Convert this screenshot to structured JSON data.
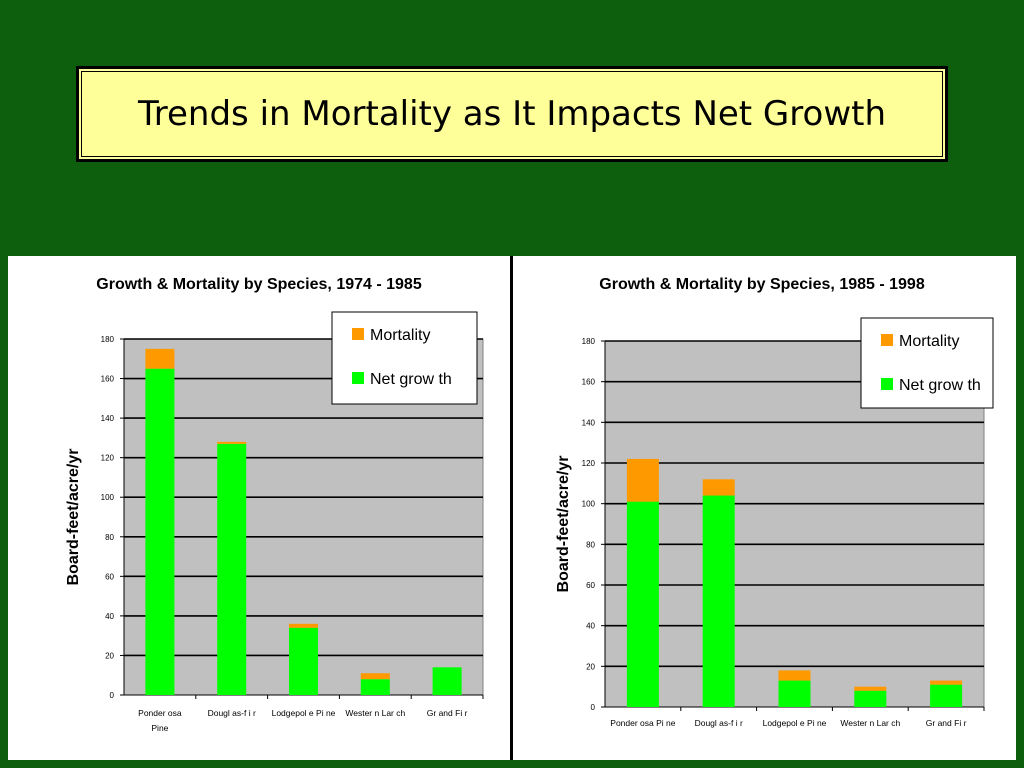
{
  "slide": {
    "title": "Trends in Mortality as It Impacts Net Growth"
  },
  "colors": {
    "background": "#0d5e0d",
    "title_box": "#ffff99",
    "plot_area": "#c0c0c0",
    "net_growth": "#00ff00",
    "mortality": "#ff9900"
  },
  "chart_data": [
    {
      "type": "bar",
      "stacked": true,
      "title": "Growth & Mortality by Species, 1974 - 1985",
      "xlabel": "",
      "ylabel": "Board-feet/acre/yr",
      "ylim": [
        0,
        180
      ],
      "yticks": [
        0,
        20,
        40,
        60,
        80,
        100,
        120,
        140,
        160,
        180
      ],
      "grid": true,
      "legend_position": "top-right",
      "categories": [
        [
          "Ponder osa",
          "Pine"
        ],
        [
          "Dougl as-f i r"
        ],
        [
          "Lodgepol e Pi ne"
        ],
        [
          "Wester n Lar ch"
        ],
        [
          "Gr and Fi r"
        ]
      ],
      "series": [
        {
          "name": "Net grow th",
          "color": "#00ff00",
          "values": [
            165,
            127,
            34,
            8,
            14
          ]
        },
        {
          "name": "Mortality",
          "color": "#ff9900",
          "values": [
            10,
            1,
            2,
            3,
            0
          ]
        }
      ]
    },
    {
      "type": "bar",
      "stacked": true,
      "title": "Growth & Mortality by Species, 1985 - 1998",
      "xlabel": "",
      "ylabel": "Board-feet/acre/yr",
      "ylim": [
        0,
        180
      ],
      "yticks": [
        0,
        20,
        40,
        60,
        80,
        100,
        120,
        140,
        160,
        180
      ],
      "grid": true,
      "legend_position": "top-right",
      "categories": [
        [
          "Ponder osa Pi ne"
        ],
        [
          "Dougl as-f i r"
        ],
        [
          "Lodgepol e Pi ne"
        ],
        [
          "Wester n Lar ch"
        ],
        [
          "Gr and Fi r"
        ]
      ],
      "series": [
        {
          "name": "Net grow th",
          "color": "#00ff00",
          "values": [
            101,
            104,
            13,
            8,
            11
          ]
        },
        {
          "name": "Mortality",
          "color": "#ff9900",
          "values": [
            21,
            8,
            5,
            2,
            2
          ]
        }
      ]
    }
  ]
}
